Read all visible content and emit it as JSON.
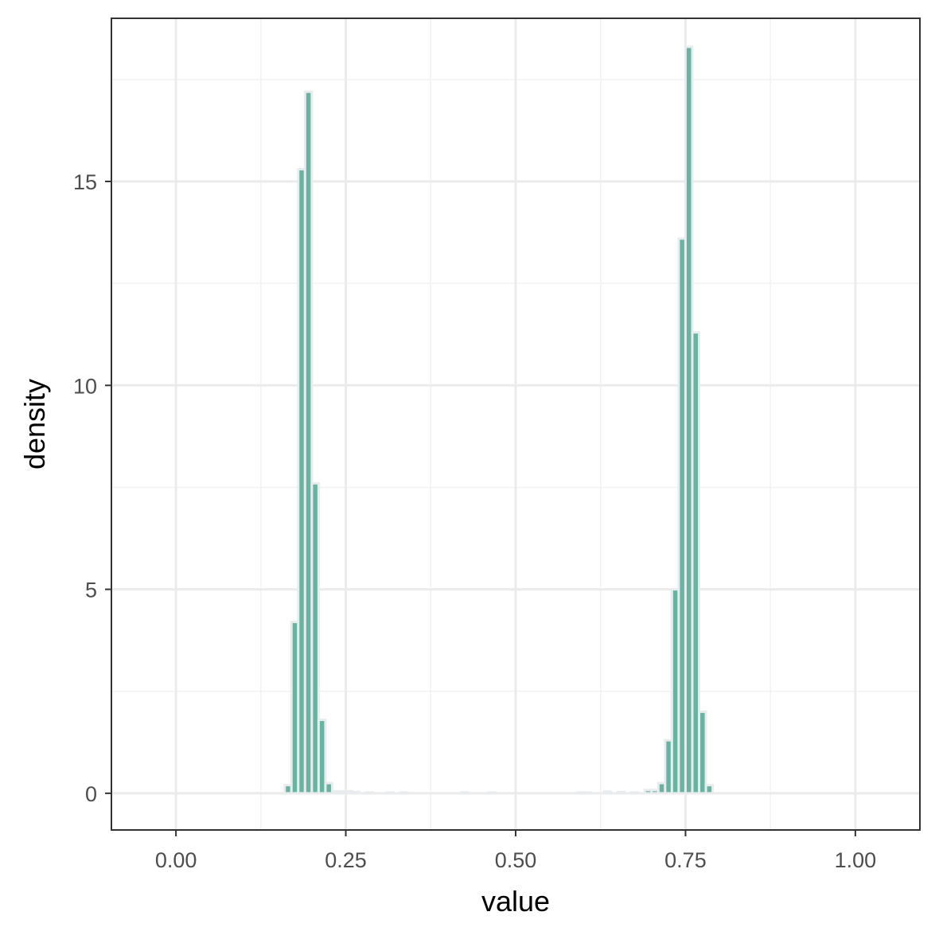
{
  "chart_data": {
    "type": "bar",
    "subtype": "histogram",
    "xlabel": "value",
    "ylabel": "density",
    "xlim": [
      -0.095,
      1.095
    ],
    "ylim": [
      -0.9,
      19.0
    ],
    "x_ticks": [
      0.0,
      0.25,
      0.5,
      0.75,
      1.0
    ],
    "x_tick_labels": [
      "0.00",
      "0.25",
      "0.50",
      "0.75",
      "1.00"
    ],
    "y_ticks": [
      0,
      5,
      10,
      15
    ],
    "y_tick_labels": [
      "0",
      "5",
      "10",
      "15"
    ],
    "x_minor_ticks": [
      0.125,
      0.375,
      0.625,
      0.875
    ],
    "y_minor_ticks": [
      2.5,
      7.5,
      12.5,
      17.5
    ],
    "grid": true,
    "bin_width": 0.01,
    "bins": [
      {
        "x": 0.165,
        "density": 0.2
      },
      {
        "x": 0.175,
        "density": 4.2
      },
      {
        "x": 0.185,
        "density": 15.3
      },
      {
        "x": 0.195,
        "density": 17.2
      },
      {
        "x": 0.205,
        "density": 7.6
      },
      {
        "x": 0.215,
        "density": 1.8
      },
      {
        "x": 0.225,
        "density": 0.25
      },
      {
        "x": 0.235,
        "density": 0.05
      },
      {
        "x": 0.245,
        "density": 0.05
      },
      {
        "x": 0.255,
        "density": 0.05
      },
      {
        "x": 0.265,
        "density": 0.03
      },
      {
        "x": 0.285,
        "density": 0.02
      },
      {
        "x": 0.315,
        "density": 0.02
      },
      {
        "x": 0.335,
        "density": 0.02
      },
      {
        "x": 0.425,
        "density": 0.02
      },
      {
        "x": 0.465,
        "density": 0.02
      },
      {
        "x": 0.595,
        "density": 0.02
      },
      {
        "x": 0.605,
        "density": 0.02
      },
      {
        "x": 0.635,
        "density": 0.04
      },
      {
        "x": 0.655,
        "density": 0.03
      },
      {
        "x": 0.675,
        "density": 0.02
      },
      {
        "x": 0.695,
        "density": 0.08
      },
      {
        "x": 0.705,
        "density": 0.08
      },
      {
        "x": 0.715,
        "density": 0.25
      },
      {
        "x": 0.725,
        "density": 1.3
      },
      {
        "x": 0.735,
        "density": 5.0
      },
      {
        "x": 0.745,
        "density": 13.6
      },
      {
        "x": 0.755,
        "density": 18.3
      },
      {
        "x": 0.765,
        "density": 11.3
      },
      {
        "x": 0.775,
        "density": 2.0
      },
      {
        "x": 0.785,
        "density": 0.2
      }
    ],
    "colors": {
      "fill": "#69b3a2",
      "outline": "#e9ecef",
      "grid_major": "#ebebeb",
      "grid_minor": "#f2f2f2",
      "panel_border": "#333333"
    }
  }
}
